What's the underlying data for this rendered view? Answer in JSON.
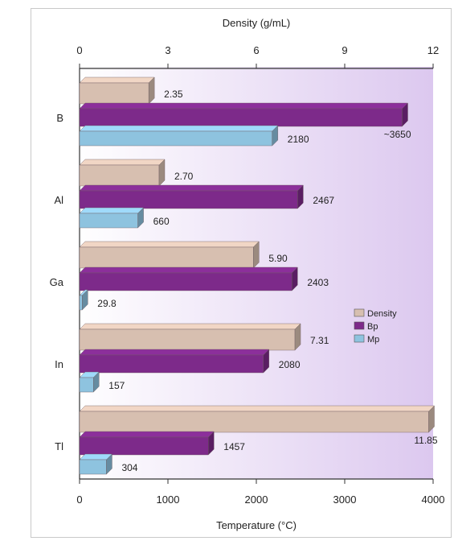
{
  "chart_data": {
    "type": "bar",
    "orientation": "horizontal",
    "categories": [
      "B",
      "Al",
      "Ga",
      "In",
      "Tl"
    ],
    "top_axis": {
      "label": "Density (g/mL)",
      "range": [
        0,
        12
      ],
      "ticks": [
        "0",
        "3",
        "6",
        "9",
        "12"
      ]
    },
    "bottom_axis": {
      "label": "Temperature (°C)",
      "range": [
        0,
        4000
      ],
      "ticks": [
        "0",
        "1000",
        "2000",
        "3000",
        "4000"
      ]
    },
    "series": [
      {
        "name": "Density",
        "axis": "top",
        "color": "#d7bfb0",
        "values": [
          2.35,
          2.7,
          5.9,
          7.31,
          11.85
        ],
        "labels": [
          "2.35",
          "2.70",
          "5.90",
          "7.31",
          "11.85"
        ]
      },
      {
        "name": "Bp",
        "axis": "bottom",
        "color": "#7d2a8a",
        "values": [
          3650,
          2467,
          2403,
          2080,
          1457
        ],
        "labels": [
          "~3650",
          "2467",
          "2403",
          "2080",
          "1457"
        ]
      },
      {
        "name": "Mp",
        "axis": "bottom",
        "color": "#8ec3df",
        "values": [
          2180,
          660,
          29.8,
          157,
          304
        ],
        "labels": [
          "2180",
          "660",
          "29.8",
          "157",
          "304"
        ]
      }
    ],
    "legend": {
      "position": "right",
      "entries": [
        "Density",
        "Bp",
        "Mp"
      ]
    },
    "background_gradient": [
      "#ffffff",
      "#dcc8ef"
    ],
    "grid": false
  }
}
